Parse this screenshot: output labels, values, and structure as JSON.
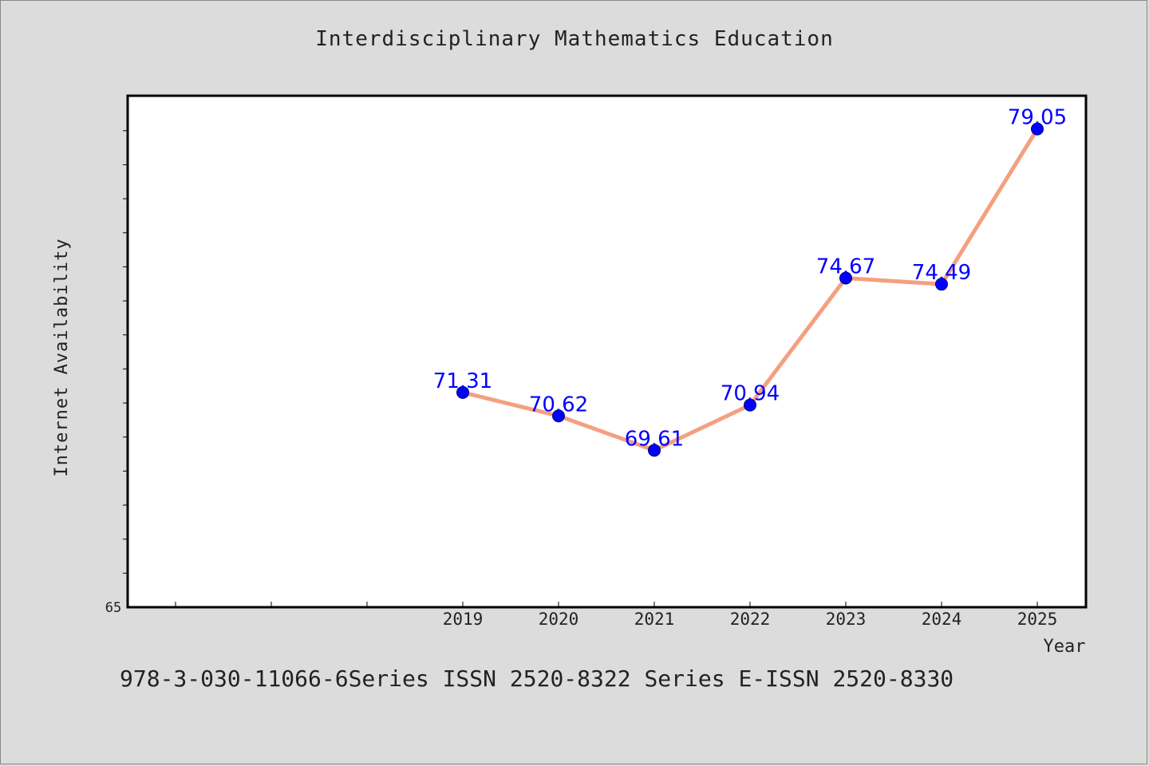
{
  "chart_data": {
    "type": "line",
    "title": "Interdisciplinary Mathematics Education",
    "xlabel": "Year",
    "ylabel": "Internet Availability",
    "categories": [
      "2019",
      "2020",
      "2021",
      "2022",
      "2023",
      "2024",
      "2025"
    ],
    "values": [
      71.31,
      70.62,
      69.61,
      70.94,
      74.67,
      74.49,
      79.05
    ],
    "value_labels": [
      "71.31",
      "70.62",
      "69.61",
      "70.94",
      "74.67",
      "74.49",
      "79.05"
    ],
    "y_tick_label": "65",
    "ylim": [
      65,
      80
    ],
    "grid": false,
    "legend": "none",
    "colors": {
      "line": "#f4a080",
      "marker": "#0000ff",
      "label": "#0000ff"
    }
  },
  "footer_text": "978-3-030-11066-6Series ISSN 2520-8322 Series E-ISSN 2520-8330"
}
